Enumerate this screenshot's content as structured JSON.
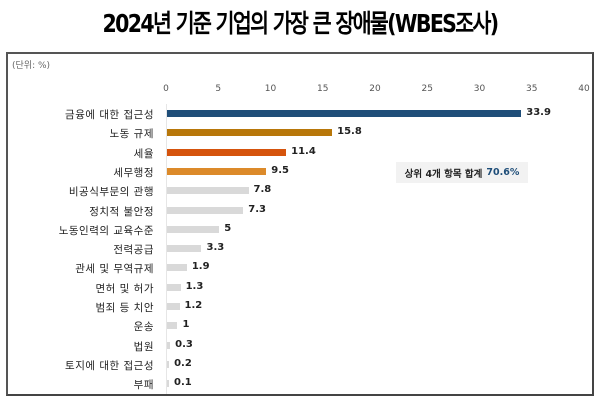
{
  "title": "2024년 기준 기업의 가장 큰 장애물(WBES조사)",
  "unit_label": "(단위: %)",
  "annotation": {
    "text": "상위 4개 항목 합계",
    "highlight": "70.6%"
  },
  "chart_data": {
    "type": "bar",
    "orientation": "horizontal",
    "title": "2024년 기준 기업의 가장 큰 장애물(WBES조사)",
    "unit": "%",
    "xlabel": "",
    "ylabel": "",
    "xlim": [
      0,
      40
    ],
    "x_ticks": [
      "0",
      "5",
      "10",
      "15",
      "20",
      "25",
      "30",
      "35",
      "40"
    ],
    "grid": false,
    "legend": null,
    "categories": [
      "금융에 대한 접근성",
      "노동 규제",
      "세율",
      "세무행정",
      "비공식부문의 관행",
      "정치적 불안정",
      "노동인력의 교육수준",
      "전력공급",
      "관세 및 무역규제",
      "면허 및 허가",
      "범죄 등 치안",
      "운송",
      "법원",
      "토지에 대한 접근성",
      "부패"
    ],
    "values": [
      33.9,
      15.8,
      11.4,
      9.5,
      7.8,
      7.3,
      5,
      3.3,
      1.9,
      1.3,
      1.2,
      1,
      0.3,
      0.2,
      0.1
    ],
    "value_labels": [
      "33.9",
      "15.8",
      "11.4",
      "9.5",
      "7.8",
      "7.3",
      "5",
      "3.3",
      "1.9",
      "1.3",
      "1.2",
      "1",
      "0.3",
      "0.2",
      "0.1"
    ],
    "colors": [
      "#1f4e79",
      "#b8770a",
      "#d5540d",
      "#dc8a2a",
      "#d9d9d9",
      "#d9d9d9",
      "#d9d9d9",
      "#d9d9d9",
      "#d9d9d9",
      "#d9d9d9",
      "#d9d9d9",
      "#d9d9d9",
      "#d9d9d9",
      "#d9d9d9",
      "#d9d9d9"
    ],
    "annotations": [
      "상위 4개 항목 합계 70.6%"
    ]
  }
}
